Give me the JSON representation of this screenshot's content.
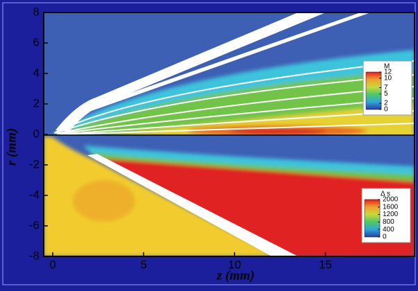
{
  "chart_data": {
    "type": "contour",
    "x_label": "z (mm)",
    "y_label": "r (mm)",
    "xlim": [
      -0.5,
      19.9
    ],
    "ylim": [
      -8,
      8
    ],
    "xticks": [
      0,
      5,
      10,
      15
    ],
    "yticks": [
      -8,
      -6,
      -4,
      -2,
      0,
      2,
      4,
      6,
      8
    ],
    "colorbars": [
      {
        "title": "M",
        "lim": [
          0,
          12
        ],
        "ticks": [
          12,
          10,
          7,
          5,
          2,
          0
        ],
        "colormap": [
          "#2a3fa8",
          "#2fa6d8",
          "#4fc86a",
          "#c8d83a",
          "#f0a030",
          "#e02020"
        ]
      },
      {
        "title": "Δ s",
        "lim": [
          0,
          2000
        ],
        "ticks": [
          2000,
          1600,
          1200,
          800,
          400,
          0
        ],
        "colormap": [
          "#2a3fa8",
          "#2fa6d8",
          "#4fc86a",
          "#c8d83a",
          "#f0a030",
          "#e02020"
        ]
      }
    ]
  }
}
